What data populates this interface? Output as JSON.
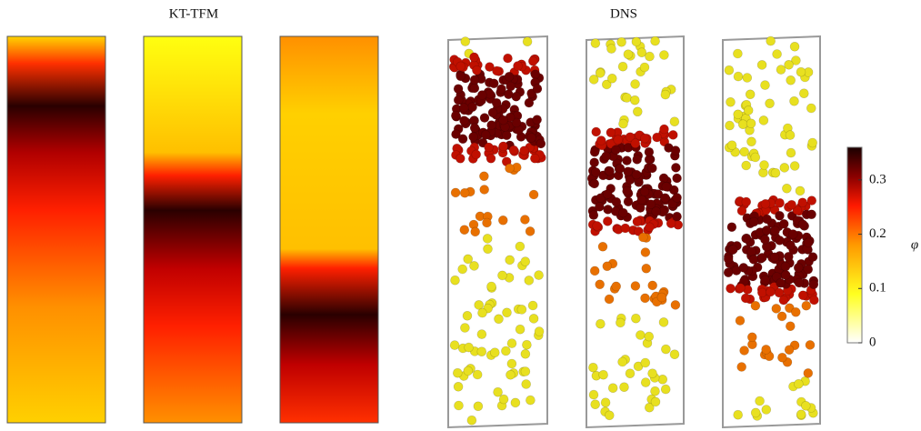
{
  "titles": {
    "left": "KT-TFM",
    "right": "DNS"
  },
  "colorbar": {
    "label": "φ",
    "lim": [
      0,
      0.36
    ],
    "ticks": [
      0,
      0.1,
      0.2,
      0.3
    ]
  }
}
